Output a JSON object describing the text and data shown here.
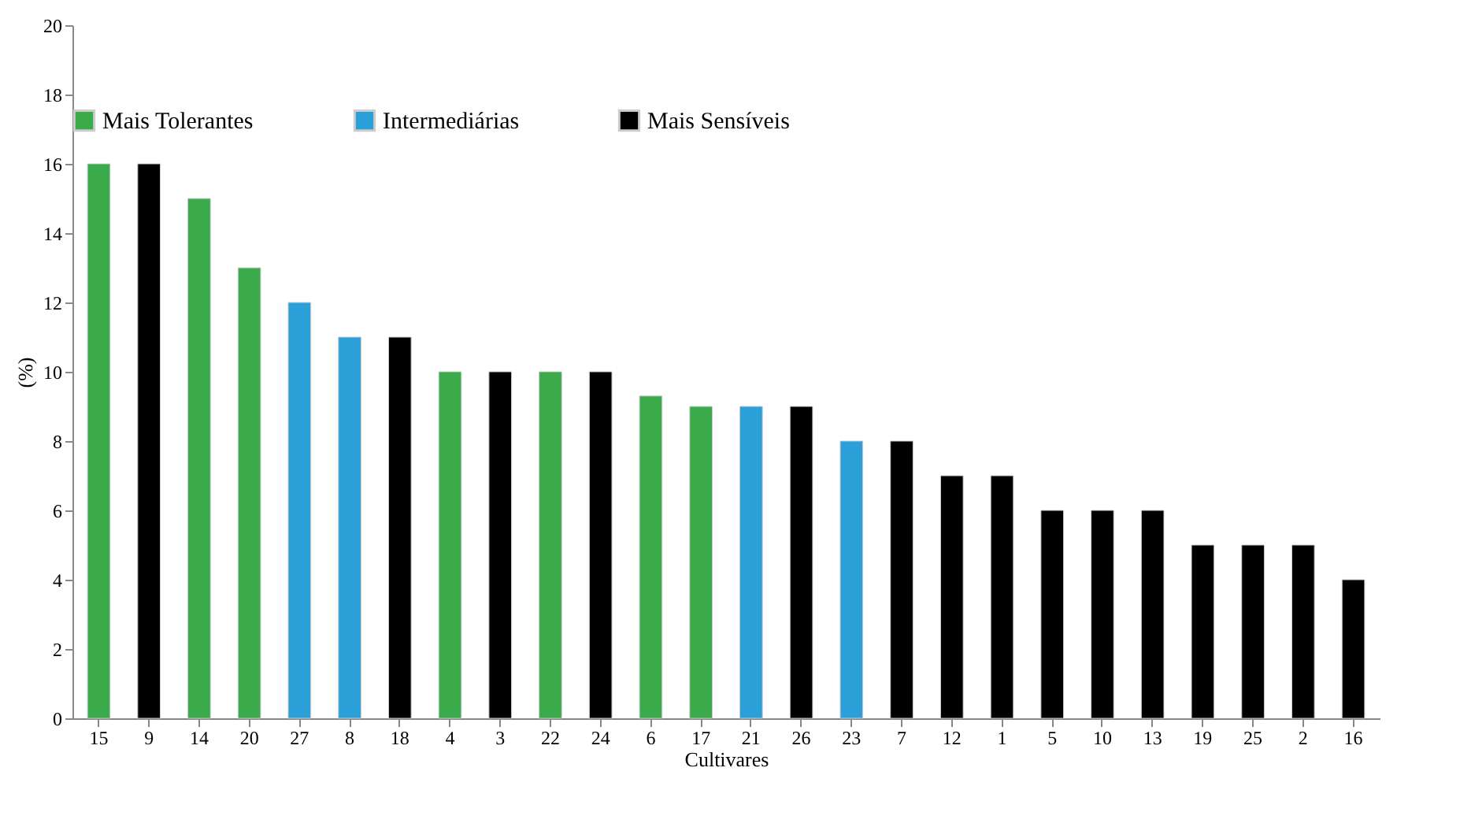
{
  "chart_data": {
    "type": "bar",
    "xlabel": "Cultivares",
    "ylabel": "(%)",
    "categories": [
      "15",
      "9",
      "14",
      "20",
      "27",
      "8",
      "18",
      "4",
      "3",
      "22",
      "24",
      "6",
      "17",
      "21",
      "26",
      "23",
      "7",
      "12",
      "1",
      "5",
      "10",
      "13",
      "19",
      "25",
      "2",
      "16"
    ],
    "series": [
      {
        "name": "Mais Tolerantes",
        "color": "#3aaa4a",
        "values": [
          16,
          null,
          15,
          13,
          null,
          null,
          null,
          10,
          null,
          10,
          null,
          9.3,
          9,
          null,
          null,
          null,
          null,
          null,
          null,
          null,
          null,
          null,
          null,
          null,
          null,
          null
        ]
      },
      {
        "name": "Intermediárias",
        "color": "#2a9fd8",
        "values": [
          null,
          null,
          null,
          null,
          12,
          11,
          null,
          null,
          null,
          null,
          null,
          null,
          null,
          9,
          null,
          8,
          null,
          null,
          null,
          null,
          null,
          null,
          null,
          null,
          null,
          null
        ]
      },
      {
        "name": "Mais Sensíveis",
        "color": "#000000",
        "values": [
          null,
          16,
          null,
          null,
          null,
          null,
          11,
          null,
          10,
          null,
          10,
          null,
          null,
          null,
          9,
          null,
          8,
          7,
          7,
          6,
          6,
          6,
          5,
          5,
          5,
          4
        ]
      }
    ],
    "ylim": [
      0,
      20
    ],
    "yticks": [
      0,
      2,
      4,
      6,
      8,
      10,
      12,
      14,
      16,
      18,
      20
    ],
    "grid": false,
    "legend": "top"
  }
}
